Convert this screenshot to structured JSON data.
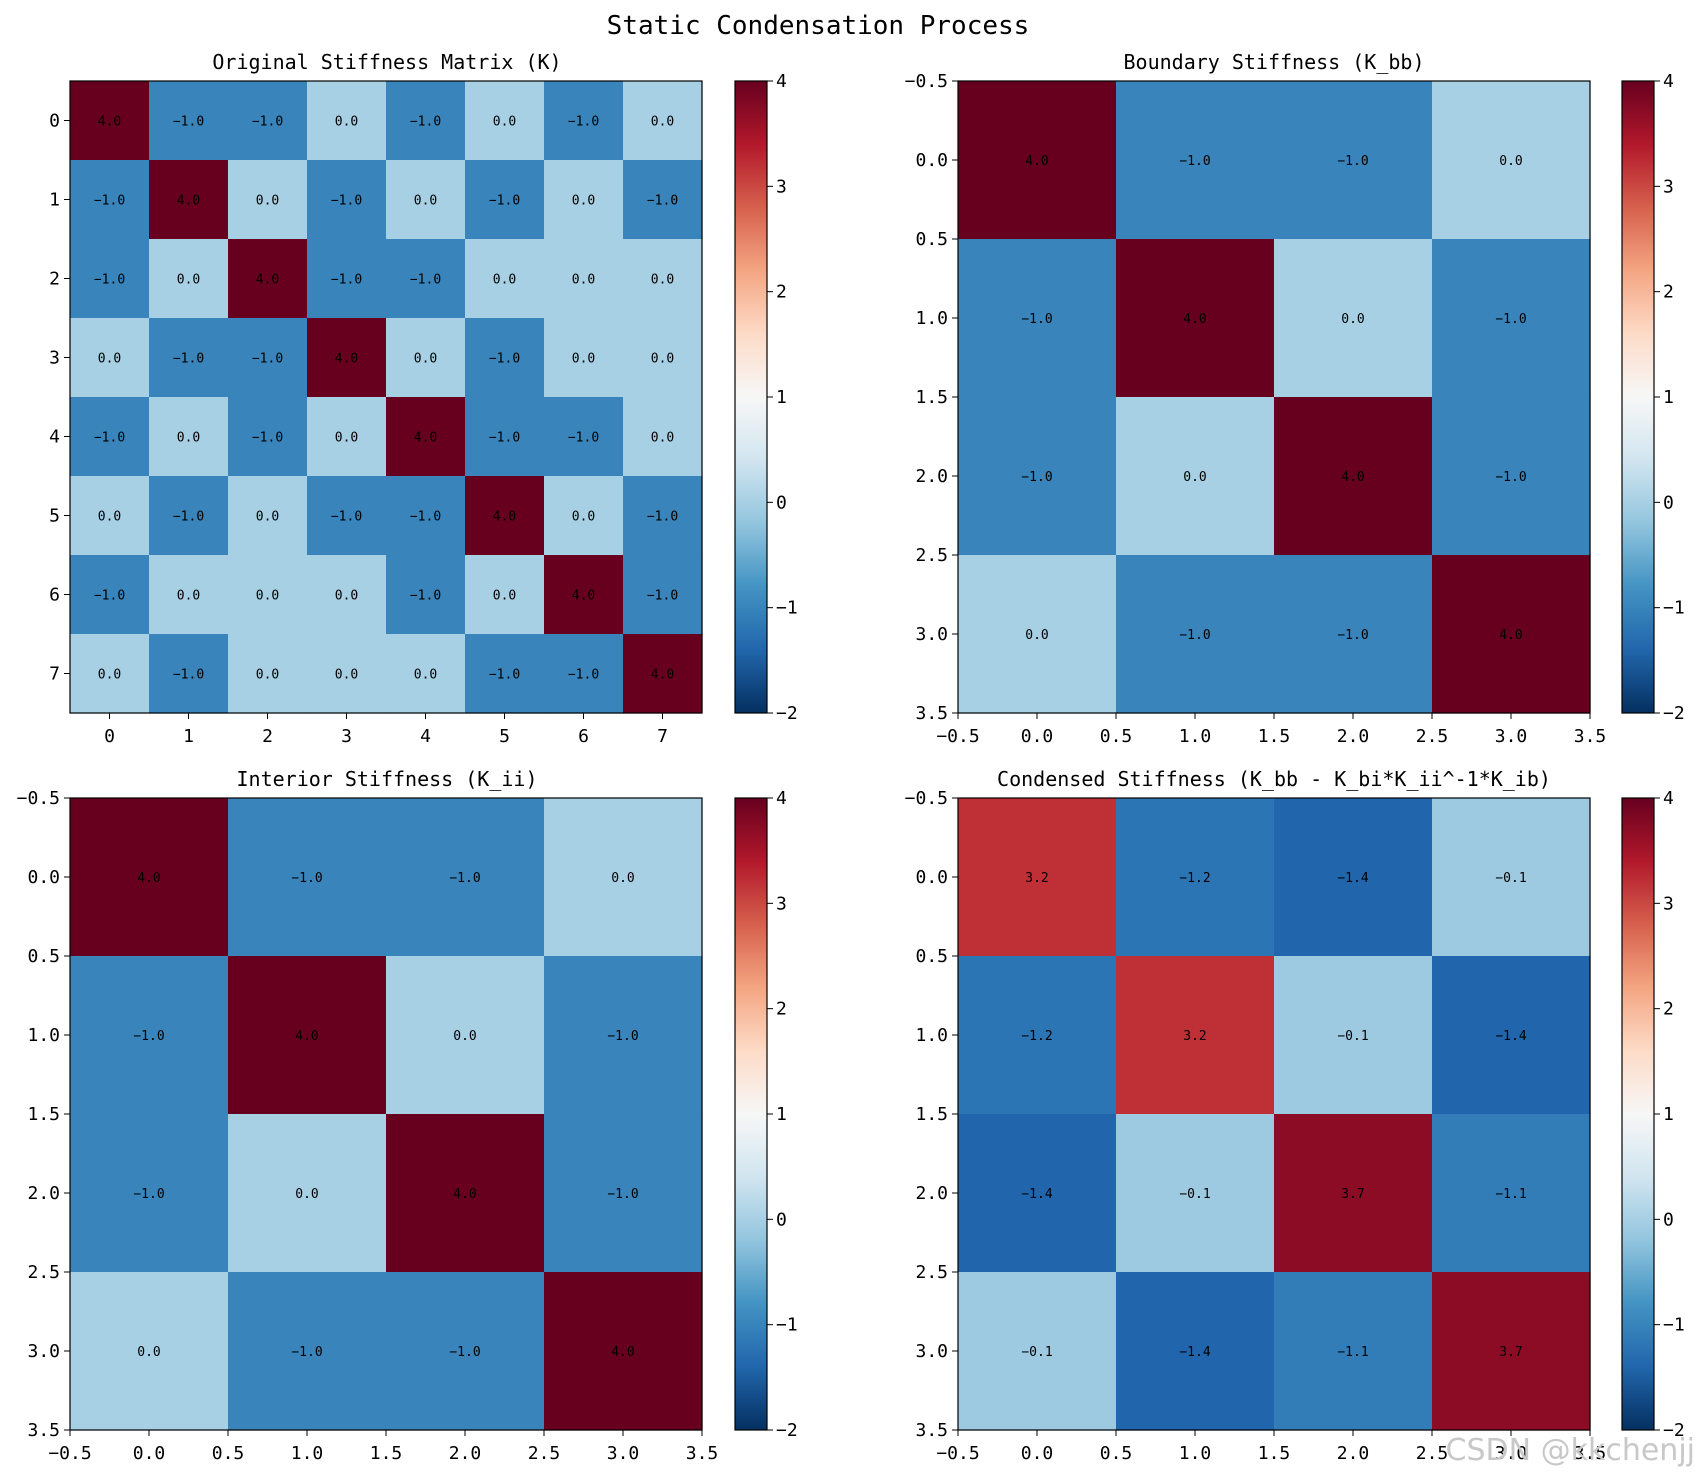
{
  "figure": {
    "title": "Static Condensation Process",
    "watermark": "CSDN @kkchenjj"
  },
  "colorbar": {
    "colormap": "RdBu_r",
    "range": [
      -2,
      4
    ],
    "ticks": [
      -2,
      -1,
      0,
      1,
      2,
      3,
      4
    ]
  },
  "chart_data": [
    {
      "type": "heatmap",
      "title": "Original Stiffness Matrix (K)",
      "xticks": [
        0,
        1,
        2,
        3,
        4,
        5,
        6,
        7
      ],
      "yticks": [
        0,
        1,
        2,
        3,
        4,
        5,
        6,
        7
      ],
      "vmin": -2,
      "vmax": 4,
      "values": [
        [
          4,
          -1,
          -1,
          0,
          -1,
          0,
          -1,
          0
        ],
        [
          -1,
          4,
          0,
          -1,
          0,
          -1,
          0,
          -1
        ],
        [
          -1,
          0,
          4,
          -1,
          -1,
          0,
          0,
          0
        ],
        [
          0,
          -1,
          -1,
          4,
          0,
          -1,
          0,
          0
        ],
        [
          -1,
          0,
          -1,
          0,
          4,
          -1,
          -1,
          0
        ],
        [
          0,
          -1,
          0,
          -1,
          -1,
          4,
          0,
          -1
        ],
        [
          -1,
          0,
          0,
          0,
          -1,
          0,
          4,
          -1
        ],
        [
          0,
          -1,
          0,
          0,
          0,
          -1,
          -1,
          4
        ]
      ]
    },
    {
      "type": "heatmap",
      "title": "Boundary Stiffness (K_bb)",
      "xticks": [
        -0.5,
        0.0,
        0.5,
        1.0,
        1.5,
        2.0,
        2.5,
        3.0,
        3.5
      ],
      "yticks": [
        -0.5,
        0.0,
        0.5,
        1.0,
        1.5,
        2.0,
        2.5,
        3.0,
        3.5
      ],
      "vmin": -2,
      "vmax": 4,
      "values": [
        [
          4,
          -1,
          -1,
          0
        ],
        [
          -1,
          4,
          0,
          -1
        ],
        [
          -1,
          0,
          4,
          -1
        ],
        [
          0,
          -1,
          -1,
          4
        ]
      ]
    },
    {
      "type": "heatmap",
      "title": "Interior Stiffness (K_ii)",
      "xticks": [
        -0.5,
        0.0,
        0.5,
        1.0,
        1.5,
        2.0,
        2.5,
        3.0,
        3.5
      ],
      "yticks": [
        -0.5,
        0.0,
        0.5,
        1.0,
        1.5,
        2.0,
        2.5,
        3.0,
        3.5
      ],
      "vmin": -2,
      "vmax": 4,
      "values": [
        [
          4,
          -1,
          -1,
          0
        ],
        [
          -1,
          4,
          0,
          -1
        ],
        [
          -1,
          0,
          4,
          -1
        ],
        [
          0,
          -1,
          -1,
          4
        ]
      ]
    },
    {
      "type": "heatmap",
      "title": "Condensed Stiffness (K_bb - K_bi*K_ii^-1*K_ib)",
      "xticks": [
        -0.5,
        0.0,
        0.5,
        1.0,
        1.5,
        2.0,
        2.5,
        3.0,
        3.5
      ],
      "yticks": [
        -0.5,
        0.0,
        0.5,
        1.0,
        1.5,
        2.0,
        2.5,
        3.0,
        3.5
      ],
      "vmin": -2,
      "vmax": 4,
      "values": [
        [
          3.2,
          -1.2,
          -1.4,
          -0.1
        ],
        [
          -1.2,
          3.2,
          -0.1,
          -1.4
        ],
        [
          -1.4,
          -0.1,
          3.7,
          -1.1
        ],
        [
          -0.1,
          -1.4,
          -1.1,
          3.7
        ]
      ]
    }
  ]
}
